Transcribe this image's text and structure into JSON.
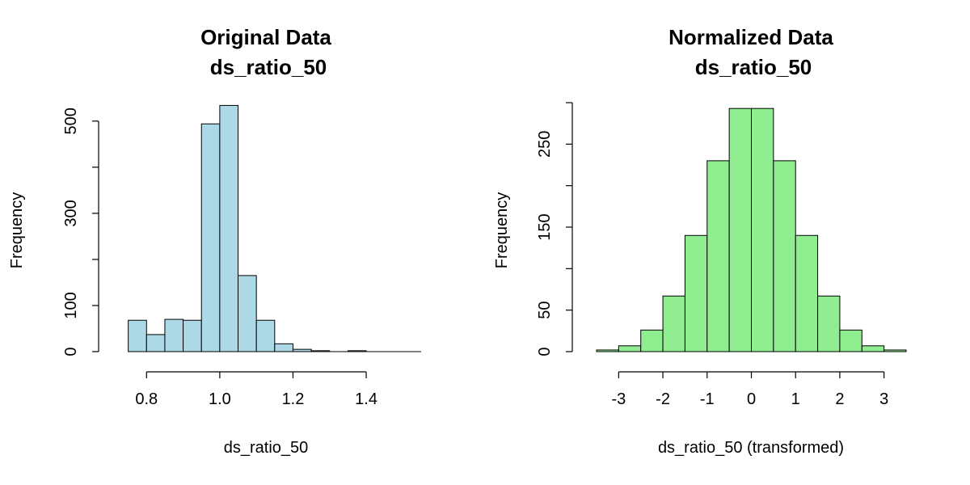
{
  "chart_data": [
    {
      "type": "bar",
      "title_line1": "Original Data",
      "title_line2": "ds_ratio_50",
      "xlabel": "ds_ratio_50",
      "ylabel": "Frequency",
      "bar_color": "#ADD8E6",
      "bins": [
        [
          0.75,
          0.8
        ],
        [
          0.8,
          0.85
        ],
        [
          0.85,
          0.9
        ],
        [
          0.9,
          0.95
        ],
        [
          0.95,
          1.0
        ],
        [
          1.0,
          1.05
        ],
        [
          1.05,
          1.1
        ],
        [
          1.1,
          1.15
        ],
        [
          1.15,
          1.2
        ],
        [
          1.2,
          1.25
        ],
        [
          1.25,
          1.3
        ],
        [
          1.3,
          1.35
        ],
        [
          1.35,
          1.4
        ],
        [
          1.4,
          1.45
        ],
        [
          1.45,
          1.5
        ],
        [
          1.5,
          1.55
        ]
      ],
      "values": [
        68,
        37,
        70,
        68,
        494,
        534,
        165,
        68,
        17,
        5,
        2,
        0,
        2,
        0,
        0,
        0
      ],
      "x_ticks": [
        0.8,
        1.0,
        1.2,
        1.4
      ],
      "x_tick_labels": [
        "0.8",
        "1.0",
        "1.2",
        "1.4"
      ],
      "y_ticks": [
        0,
        100,
        200,
        300,
        400,
        500
      ],
      "y_tick_labels": [
        "0",
        "100",
        "",
        "300",
        "",
        "500"
      ],
      "xlim": [
        0.7,
        1.55
      ],
      "ylim": [
        0,
        540
      ],
      "grid": false
    },
    {
      "type": "bar",
      "title_line1": "Normalized Data",
      "title_line2": "ds_ratio_50",
      "xlabel": "ds_ratio_50 (transformed)",
      "ylabel": "Frequency",
      "bar_color": "#90EE90",
      "bins": [
        [
          -3.5,
          -3.0
        ],
        [
          -3.0,
          -2.5
        ],
        [
          -2.5,
          -2.0
        ],
        [
          -2.0,
          -1.5
        ],
        [
          -1.5,
          -1.0
        ],
        [
          -1.0,
          -0.5
        ],
        [
          -0.5,
          0.0
        ],
        [
          0.0,
          0.5
        ],
        [
          0.5,
          1.0
        ],
        [
          1.0,
          1.5
        ],
        [
          1.5,
          2.0
        ],
        [
          2.0,
          2.5
        ],
        [
          2.5,
          3.0
        ],
        [
          3.0,
          3.5
        ]
      ],
      "values": [
        2,
        7,
        26,
        67,
        140,
        230,
        293,
        293,
        230,
        140,
        67,
        26,
        7,
        2
      ],
      "x_ticks": [
        -3,
        -2,
        -1,
        0,
        1,
        2,
        3
      ],
      "x_tick_labels": [
        "-3",
        "-2",
        "-1",
        "0",
        "1",
        "2",
        "3"
      ],
      "y_ticks": [
        0,
        50,
        100,
        150,
        200,
        250,
        300
      ],
      "y_tick_labels": [
        "0",
        "50",
        "",
        "150",
        "",
        "250",
        ""
      ],
      "xlim": [
        -3.5,
        3.5
      ],
      "ylim": [
        0,
        300
      ],
      "grid": false
    }
  ]
}
